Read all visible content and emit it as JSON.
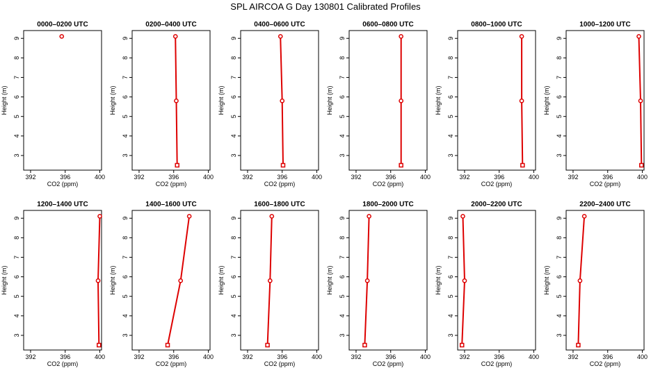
{
  "title": "SPL AIRCOA G  Day 130801  Calibrated Profiles",
  "colors": {
    "profile": "#dd0000",
    "axis": "#000000",
    "background": "#ffffff"
  },
  "chart_data": [
    {
      "type": "line",
      "title": "0000–0200 UTC",
      "xlabel": "CO2 (ppm)",
      "ylabel": "Height (m)",
      "xlim": [
        391.2,
        400.2
      ],
      "ylim": [
        2.25,
        9.4
      ],
      "xticks": [
        392,
        396,
        400
      ],
      "yticks": [
        3,
        4,
        5,
        6,
        7,
        8,
        9
      ],
      "points": [
        {
          "x": 395.6,
          "y": 9.1
        }
      ]
    },
    {
      "type": "line",
      "title": "0200–0400 UTC",
      "xlabel": "CO2 (ppm)",
      "ylabel": "Height (m)",
      "xlim": [
        391.2,
        400.2
      ],
      "ylim": [
        2.25,
        9.4
      ],
      "xticks": [
        392,
        396,
        400
      ],
      "yticks": [
        3,
        4,
        5,
        6,
        7,
        8,
        9
      ],
      "points": [
        {
          "x": 396.2,
          "y": 9.1
        },
        {
          "x": 396.3,
          "y": 5.8
        },
        {
          "x": 396.4,
          "y": 2.5
        }
      ]
    },
    {
      "type": "line",
      "title": "0400–0600 UTC",
      "xlabel": "CO2 (ppm)",
      "ylabel": "Height (m)",
      "xlim": [
        391.2,
        400.2
      ],
      "ylim": [
        2.25,
        9.4
      ],
      "xticks": [
        392,
        396,
        400
      ],
      "yticks": [
        3,
        4,
        5,
        6,
        7,
        8,
        9
      ],
      "points": [
        {
          "x": 395.8,
          "y": 9.1
        },
        {
          "x": 396.0,
          "y": 5.8
        },
        {
          "x": 396.1,
          "y": 2.5
        }
      ]
    },
    {
      "type": "line",
      "title": "0600–0800 UTC",
      "xlabel": "CO2 (ppm)",
      "ylabel": "Height (m)",
      "xlim": [
        391.2,
        400.2
      ],
      "ylim": [
        2.25,
        9.4
      ],
      "xticks": [
        392,
        396,
        400
      ],
      "yticks": [
        3,
        4,
        5,
        6,
        7,
        8,
        9
      ],
      "points": [
        {
          "x": 397.2,
          "y": 9.1
        },
        {
          "x": 397.2,
          "y": 5.8
        },
        {
          "x": 397.2,
          "y": 2.5
        }
      ]
    },
    {
      "type": "line",
      "title": "0800–1000 UTC",
      "xlabel": "CO2 (ppm)",
      "ylabel": "Height (m)",
      "xlim": [
        391.2,
        400.2
      ],
      "ylim": [
        2.25,
        9.4
      ],
      "xticks": [
        392,
        396,
        400
      ],
      "yticks": [
        3,
        4,
        5,
        6,
        7,
        8,
        9
      ],
      "points": [
        {
          "x": 398.6,
          "y": 9.1
        },
        {
          "x": 398.6,
          "y": 5.8
        },
        {
          "x": 398.7,
          "y": 2.5
        }
      ]
    },
    {
      "type": "line",
      "title": "1000–1200 UTC",
      "xlabel": "CO2 (ppm)",
      "ylabel": "Height (m)",
      "xlim": [
        391.2,
        400.2
      ],
      "ylim": [
        2.25,
        9.4
      ],
      "xticks": [
        392,
        396,
        400
      ],
      "yticks": [
        3,
        4,
        5,
        6,
        7,
        8,
        9
      ],
      "points": [
        {
          "x": 399.6,
          "y": 9.1
        },
        {
          "x": 399.8,
          "y": 5.8
        },
        {
          "x": 399.9,
          "y": 2.5
        }
      ]
    },
    {
      "type": "line",
      "title": "1200–1400 UTC",
      "xlabel": "CO2 (ppm)",
      "ylabel": "Height (m)",
      "xlim": [
        391.2,
        400.2
      ],
      "ylim": [
        2.25,
        9.4
      ],
      "xticks": [
        392,
        396,
        400
      ],
      "yticks": [
        3,
        4,
        5,
        6,
        7,
        8,
        9
      ],
      "points": [
        {
          "x": 400.0,
          "y": 9.1
        },
        {
          "x": 399.8,
          "y": 5.8
        },
        {
          "x": 399.9,
          "y": 2.5
        }
      ]
    },
    {
      "type": "line",
      "title": "1400–1600 UTC",
      "xlabel": "CO2 (ppm)",
      "ylabel": "Height (m)",
      "xlim": [
        391.2,
        400.2
      ],
      "ylim": [
        2.25,
        9.4
      ],
      "xticks": [
        392,
        396,
        400
      ],
      "yticks": [
        3,
        4,
        5,
        6,
        7,
        8,
        9
      ],
      "points": [
        {
          "x": 397.8,
          "y": 9.1
        },
        {
          "x": 396.8,
          "y": 5.8
        },
        {
          "x": 395.3,
          "y": 2.5
        }
      ]
    },
    {
      "type": "line",
      "title": "1600–1800 UTC",
      "xlabel": "CO2 (ppm)",
      "ylabel": "Height (m)",
      "xlim": [
        391.2,
        400.2
      ],
      "ylim": [
        2.25,
        9.4
      ],
      "xticks": [
        392,
        396,
        400
      ],
      "yticks": [
        3,
        4,
        5,
        6,
        7,
        8,
        9
      ],
      "points": [
        {
          "x": 394.8,
          "y": 9.1
        },
        {
          "x": 394.6,
          "y": 5.8
        },
        {
          "x": 394.3,
          "y": 2.5
        }
      ]
    },
    {
      "type": "line",
      "title": "1800–2000 UTC",
      "xlabel": "CO2 (ppm)",
      "ylabel": "Height (m)",
      "xlim": [
        391.2,
        400.2
      ],
      "ylim": [
        2.25,
        9.4
      ],
      "xticks": [
        392,
        396,
        400
      ],
      "yticks": [
        3,
        4,
        5,
        6,
        7,
        8,
        9
      ],
      "points": [
        {
          "x": 393.5,
          "y": 9.1
        },
        {
          "x": 393.3,
          "y": 5.8
        },
        {
          "x": 393.0,
          "y": 2.5
        }
      ]
    },
    {
      "type": "line",
      "title": "2000–2200 UTC",
      "xlabel": "CO2 (ppm)",
      "ylabel": "Height (m)",
      "xlim": [
        391.2,
        400.2
      ],
      "ylim": [
        2.25,
        9.4
      ],
      "xticks": [
        392,
        396,
        400
      ],
      "yticks": [
        3,
        4,
        5,
        6,
        7,
        8,
        9
      ],
      "points": [
        {
          "x": 391.8,
          "y": 9.1
        },
        {
          "x": 392.0,
          "y": 5.8
        },
        {
          "x": 391.7,
          "y": 2.5
        }
      ]
    },
    {
      "type": "line",
      "title": "2200–2400 UTC",
      "xlabel": "CO2 (ppm)",
      "ylabel": "Height (m)",
      "xlim": [
        391.2,
        400.2
      ],
      "ylim": [
        2.25,
        9.4
      ],
      "xticks": [
        392,
        396,
        400
      ],
      "yticks": [
        3,
        4,
        5,
        6,
        7,
        8,
        9
      ],
      "points": [
        {
          "x": 393.3,
          "y": 9.1
        },
        {
          "x": 392.8,
          "y": 5.8
        },
        {
          "x": 392.6,
          "y": 2.5
        }
      ]
    }
  ]
}
